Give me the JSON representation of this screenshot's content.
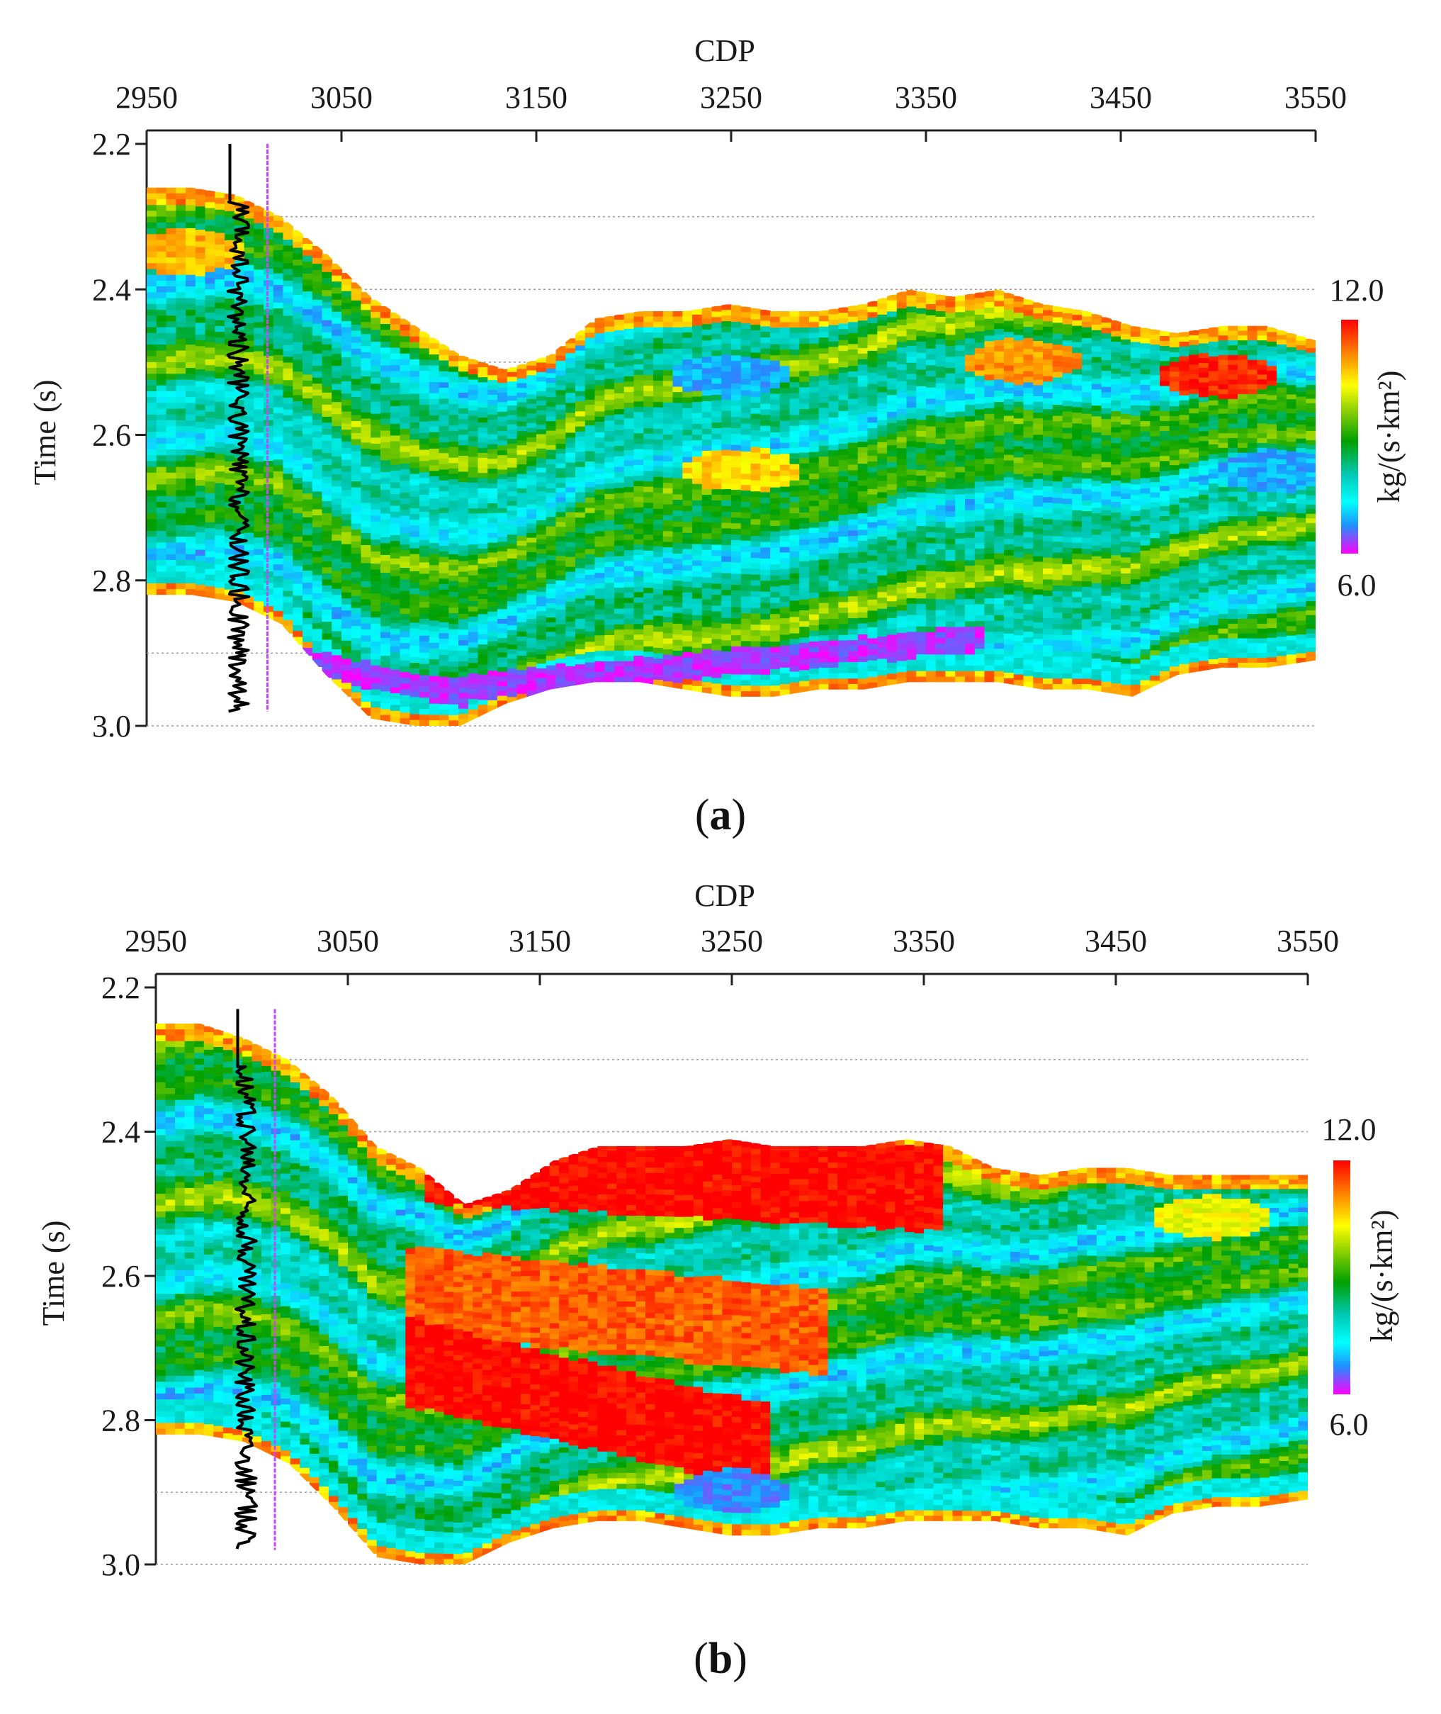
{
  "figure": {
    "panel_labels": [
      "(a)",
      "(b)"
    ]
  },
  "chart_data": [
    {
      "type": "heatmap",
      "panel": "(a)",
      "xlabel": "CDP",
      "ylabel": "Time (s)",
      "x_ticks": [
        "2950",
        "3050",
        "3150",
        "3250",
        "3350",
        "3450",
        "3550"
      ],
      "x_tick_values": [
        2950,
        3050,
        3150,
        3250,
        3350,
        3450,
        3550
      ],
      "y_ticks": [
        "2.2",
        "2.4",
        "2.6",
        "2.8",
        "3.0"
      ],
      "y_tick_values": [
        2.2,
        2.4,
        2.6,
        2.8,
        3.0
      ],
      "xlim": [
        2950,
        3550
      ],
      "ylim": [
        2.2,
        3.0
      ],
      "gridlines_y": [
        2.3,
        2.4,
        2.5,
        2.6,
        2.7,
        2.8,
        2.9,
        3.0
      ],
      "colorbar": {
        "label": "kg/(s·km²)",
        "max_label": "12.0",
        "min_label": "6.0",
        "min": 6.0,
        "max": 12.0,
        "colors": [
          "#ff0000",
          "#ff7f00",
          "#ffff00",
          "#7fcc00",
          "#00a000",
          "#00c8b4",
          "#00ffff",
          "#1e90ff",
          "#ff00ff"
        ]
      },
      "well": {
        "cdp": 3000,
        "marker_cdp": 3012,
        "t_start": 2.2,
        "t_end": 2.98
      },
      "top_horizon_t": [
        2.26,
        2.26,
        2.27,
        2.3,
        2.35,
        2.41,
        2.45,
        2.49,
        2.51,
        2.49,
        2.44,
        2.43,
        2.43,
        2.42,
        2.43,
        2.43,
        2.42,
        2.4,
        2.41,
        2.4,
        2.42,
        2.43,
        2.45,
        2.46,
        2.45,
        2.45,
        2.47
      ],
      "bottom_horizon_t": [
        2.82,
        2.82,
        2.83,
        2.86,
        2.93,
        2.99,
        3.0,
        3.0,
        2.97,
        2.95,
        2.94,
        2.94,
        2.95,
        2.96,
        2.96,
        2.95,
        2.95,
        2.94,
        2.94,
        2.94,
        2.95,
        2.95,
        2.96,
        2.93,
        2.92,
        2.92,
        2.91
      ],
      "profile_cdp": [
        2950,
        2973,
        2996,
        3019,
        3042,
        3065,
        3088,
        3111,
        3134,
        3157,
        3180,
        3203,
        3226,
        3249,
        3272,
        3295,
        3318,
        3341,
        3364,
        3387,
        3410,
        3433,
        3456,
        3479,
        3502,
        3525,
        3550
      ],
      "features": [
        {
          "kind": "low",
          "cdp0": 3025,
          "t0": 2.91,
          "cdp1": 3115,
          "t1": 2.96,
          "value": 6.3
        },
        {
          "kind": "low",
          "cdp0": 3110,
          "t0": 2.95,
          "cdp1": 3380,
          "t1": 2.88,
          "value": 6.3
        },
        {
          "kind": "high",
          "cdp": 2970,
          "t": 2.35,
          "value": 11.0
        },
        {
          "kind": "high",
          "cdp": 3255,
          "t": 2.65,
          "value": 10.8
        },
        {
          "kind": "high",
          "cdp": 3400,
          "t": 2.5,
          "value": 11.2
        },
        {
          "kind": "high",
          "cdp": 3500,
          "t": 2.52,
          "value": 11.8
        },
        {
          "kind": "low",
          "cdp": 3250,
          "t": 2.52,
          "value": 7.0
        },
        {
          "kind": "low",
          "cdp": 3530,
          "t": 2.65,
          "value": 7.0
        }
      ]
    },
    {
      "type": "heatmap",
      "panel": "(b)",
      "xlabel": "CDP",
      "ylabel": "Time (s)",
      "x_ticks": [
        "2950",
        "3050",
        "3150",
        "3250",
        "3350",
        "3450",
        "3550"
      ],
      "x_tick_values": [
        2950,
        3050,
        3150,
        3250,
        3350,
        3450,
        3550
      ],
      "y_ticks": [
        "2.2",
        "2.4",
        "2.6",
        "2.8",
        "3.0"
      ],
      "y_tick_values": [
        2.2,
        2.4,
        2.6,
        2.8,
        3.0
      ],
      "xlim": [
        2950,
        3550
      ],
      "ylim": [
        2.2,
        3.0
      ],
      "gridlines_y": [
        2.3,
        2.4,
        2.5,
        2.6,
        2.7,
        2.8,
        2.9,
        3.0
      ],
      "colorbar": {
        "label": "kg/(s·km²)",
        "max_label": "12.0",
        "min_label": "6.0",
        "min": 6.0,
        "max": 12.0,
        "colors": [
          "#ff0000",
          "#ff7f00",
          "#ffff00",
          "#7fcc00",
          "#00a000",
          "#00c8b4",
          "#00ffff",
          "#1e90ff",
          "#ff00ff"
        ]
      },
      "well": {
        "cdp": 3000,
        "marker_cdp": 3012,
        "t_start": 2.23,
        "t_end": 2.98
      },
      "top_horizon_t": [
        2.25,
        2.25,
        2.27,
        2.3,
        2.35,
        2.42,
        2.45,
        2.5,
        2.48,
        2.44,
        2.42,
        2.42,
        2.42,
        2.41,
        2.42,
        2.42,
        2.42,
        2.41,
        2.42,
        2.45,
        2.46,
        2.45,
        2.45,
        2.46,
        2.46,
        2.46,
        2.46
      ],
      "bottom_horizon_t": [
        2.82,
        2.82,
        2.83,
        2.86,
        2.92,
        2.99,
        3.0,
        3.0,
        2.97,
        2.95,
        2.94,
        2.94,
        2.95,
        2.96,
        2.96,
        2.95,
        2.95,
        2.94,
        2.94,
        2.94,
        2.95,
        2.95,
        2.96,
        2.93,
        2.92,
        2.92,
        2.91
      ],
      "profile_cdp": [
        2950,
        2973,
        2996,
        3019,
        3042,
        3065,
        3088,
        3111,
        3134,
        3157,
        3180,
        3203,
        3226,
        3249,
        3272,
        3295,
        3318,
        3341,
        3364,
        3387,
        3410,
        3433,
        3456,
        3479,
        3502,
        3525,
        3550
      ],
      "features": [
        {
          "kind": "high",
          "cdp0": 3090,
          "t0": 2.44,
          "cdp1": 3360,
          "t1": 2.48,
          "value": 12.0
        },
        {
          "kind": "high",
          "cdp0": 3080,
          "t0": 2.62,
          "cdp1": 3300,
          "t1": 2.68,
          "value": 11.5
        },
        {
          "kind": "high",
          "cdp0": 3080,
          "t0": 2.72,
          "cdp1": 3270,
          "t1": 2.84,
          "value": 12.0
        },
        {
          "kind": "high",
          "cdp": 3500,
          "t": 2.52,
          "value": 10.5
        },
        {
          "kind": "low",
          "cdp": 3250,
          "t": 2.9,
          "value": 6.8
        }
      ]
    }
  ]
}
